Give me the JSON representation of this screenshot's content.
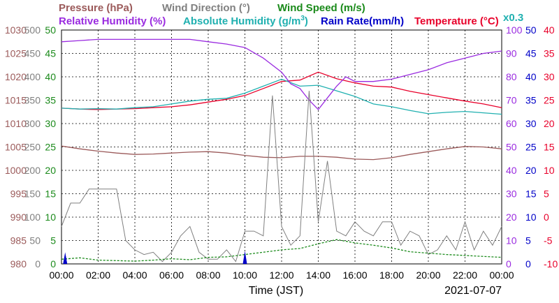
{
  "chart_data": {
    "type": "line",
    "legend": [
      {
        "text": "Pressure (hPa)",
        "color": "#9b5a5a"
      },
      {
        "text": "Wind Direction (°)",
        "color": "#808080"
      },
      {
        "text": "Wind Speed (m/s)",
        "color": "#1a8a1a"
      },
      {
        "text": "Relative Humidity (%)",
        "color": "#9a2be0"
      },
      {
        "text": "Absolute Humidity (g/m",
        "sup": "3",
        "tail": ")",
        "color": "#20b0b0"
      },
      {
        "text": "Rain Rate(mm/h)",
        "color": "#0000c8"
      },
      {
        "text": "Temperature (°C)",
        "color": "#e8002a"
      },
      {
        "text": "x0.3",
        "color": "#20b0b0"
      }
    ],
    "xlabel": "Time (JST)",
    "date": "2021-07-07",
    "x_ticks": [
      "00:00",
      "02:00",
      "04:00",
      "06:00",
      "08:00",
      "10:00",
      "12:00",
      "14:00",
      "16:00",
      "18:00",
      "20:00",
      "22:00",
      "00:00"
    ],
    "axes": {
      "pressure": {
        "color": "#9b5a5a",
        "ticks": [
          "980",
          "985",
          "990",
          "995",
          "1000",
          "1005",
          "1010",
          "1015",
          "1020",
          "1025",
          "1030"
        ],
        "range": [
          980,
          1030
        ]
      },
      "wind_direction": {
        "color": "#808080",
        "ticks": [
          "0",
          "50",
          "100",
          "150",
          "200",
          "250",
          "300",
          "350",
          "400",
          "450",
          "500"
        ],
        "range": [
          0,
          500
        ]
      },
      "wind_speed": {
        "color": "#1a8a1a",
        "ticks": [
          "0",
          "5",
          "10",
          "15",
          "20",
          "25",
          "30",
          "35",
          "40",
          "45",
          "50"
        ],
        "range": [
          0,
          50
        ]
      },
      "relative_humidity": {
        "color": "#9a2be0",
        "ticks": [
          "0",
          "10",
          "20",
          "30",
          "40",
          "50",
          "60",
          "70",
          "80",
          "90",
          "100"
        ],
        "range": [
          0,
          100
        ]
      },
      "rain_rate": {
        "color": "#0000c8",
        "ticks": [
          "0",
          "5",
          "10",
          "15",
          "20",
          "25",
          "30",
          "35",
          "40",
          "45",
          "50"
        ],
        "range": [
          0,
          50
        ]
      },
      "temperature": {
        "color": "#e8002a",
        "ticks": [
          "-10",
          "-5",
          "0",
          "5",
          "10",
          "15",
          "20",
          "25",
          "30",
          "35",
          "40"
        ],
        "range": [
          -10,
          40
        ]
      }
    },
    "series": [
      {
        "name": "Pressure (hPa)",
        "axis": "pressure",
        "color": "#9b5a5a",
        "x": [
          0,
          1,
          2,
          3,
          4,
          5,
          6,
          7,
          8,
          9,
          10,
          11,
          12,
          13,
          14,
          15,
          16,
          17,
          18,
          19,
          20,
          21,
          22,
          23,
          24
        ],
        "y": [
          1005.2,
          1004.6,
          1004.1,
          1003.7,
          1003.4,
          1003.5,
          1003.7,
          1003.9,
          1004.0,
          1003.7,
          1003.2,
          1002.8,
          1002.7,
          1003.0,
          1003.0,
          1002.8,
          1002.4,
          1002.3,
          1002.7,
          1003.4,
          1004.0,
          1004.6,
          1005.1,
          1005.0,
          1004.6
        ]
      },
      {
        "name": "Temperature (°C)",
        "axis": "temperature",
        "color": "#e8002a",
        "x": [
          0,
          1,
          2,
          3,
          4,
          5,
          6,
          7,
          8,
          9,
          10,
          11,
          12,
          13,
          14,
          15,
          16,
          17,
          18,
          19,
          20,
          21,
          22,
          23,
          24
        ],
        "y": [
          23.3,
          23.1,
          23.0,
          23.1,
          23.2,
          23.4,
          23.6,
          24.0,
          24.6,
          25.2,
          26.0,
          27.5,
          29.0,
          29.3,
          31.0,
          29.6,
          28.7,
          28.0,
          27.8,
          26.9,
          26.2,
          25.5,
          24.8,
          24.2,
          23.4
        ]
      },
      {
        "name": "Absolute Humidity (g/m3)",
        "axis": "temperature",
        "color": "#20b0b0",
        "x": [
          0,
          1,
          2,
          3,
          4,
          5,
          6,
          7,
          8,
          9,
          10,
          11,
          12,
          13,
          14,
          15,
          16,
          17,
          18,
          19,
          20,
          21,
          22,
          23,
          24
        ],
        "y": [
          23.3,
          23.1,
          23.2,
          23.1,
          23.4,
          23.6,
          24.2,
          24.8,
          25.2,
          25.4,
          26.5,
          28.0,
          29.5,
          28.0,
          28.2,
          27.0,
          25.8,
          24.2,
          23.6,
          22.8,
          22.1,
          22.4,
          22.6,
          22.3,
          22.0
        ]
      },
      {
        "name": "Relative Humidity (%)",
        "axis": "relative_humidity",
        "color": "#9a2be0",
        "x": [
          0,
          1,
          2,
          3,
          4,
          5,
          6,
          7,
          8,
          9,
          10,
          11,
          12,
          12.5,
          13,
          13.5,
          14,
          14.5,
          15,
          15.5,
          16,
          17,
          18,
          19,
          20,
          21,
          22,
          23,
          24
        ],
        "y": [
          95,
          95.5,
          96,
          96,
          96,
          96,
          96,
          96,
          95,
          94,
          92.5,
          88,
          82,
          77,
          75,
          70,
          66,
          71,
          76,
          80,
          78,
          78,
          79,
          81,
          83,
          86,
          88,
          90,
          91
        ]
      },
      {
        "name": "Wind Direction (°)",
        "axis": "wind_direction",
        "color": "#808080",
        "x": [
          0,
          0.5,
          1,
          1.5,
          2,
          2.5,
          3,
          3.5,
          4,
          4.5,
          5,
          5.5,
          6,
          6.5,
          7,
          7.5,
          8,
          8.5,
          9,
          9.5,
          10,
          10.5,
          11,
          11.5,
          12,
          12.5,
          13,
          13.5,
          14,
          14.5,
          15,
          15.5,
          16,
          16.5,
          17,
          17.5,
          18,
          18.5,
          19,
          19.5,
          20,
          20.5,
          21,
          21.5,
          22,
          22.5,
          23,
          23.5,
          24
        ],
        "y": [
          80,
          130,
          130,
          160,
          160,
          160,
          160,
          50,
          30,
          20,
          25,
          5,
          25,
          60,
          80,
          25,
          10,
          10,
          30,
          5,
          70,
          70,
          60,
          360,
          80,
          40,
          60,
          370,
          90,
          220,
          70,
          60,
          90,
          70,
          60,
          90,
          90,
          40,
          70,
          60,
          20,
          30,
          60,
          30,
          90,
          30,
          70,
          40,
          80
        ]
      },
      {
        "name": "Wind Speed (m/s)",
        "axis": "wind_speed",
        "color": "#1a8a1a",
        "x": [
          0,
          1,
          2,
          3,
          4,
          5,
          6,
          7,
          8,
          9,
          10,
          11,
          12,
          13,
          14,
          15,
          16,
          17,
          18,
          19,
          20,
          21,
          22,
          23,
          24
        ],
        "y": [
          1.0,
          1.3,
          0.8,
          0.7,
          0.6,
          0.8,
          1.1,
          0.9,
          1.4,
          1.5,
          2.0,
          2.5,
          3.0,
          3.3,
          4.3,
          5.2,
          4.5,
          4.0,
          3.4,
          2.6,
          2.3,
          2.0,
          1.8,
          1.6,
          1.4
        ]
      },
      {
        "name": "Rain Rate(mm/h)",
        "axis": "rain_rate",
        "color": "#0000c8",
        "x": [
          0,
          0.2,
          0.4,
          0.6,
          9.8,
          10.0,
          10.2,
          24
        ],
        "y": [
          0,
          2.5,
          0,
          0,
          0,
          2.8,
          0,
          0
        ]
      }
    ]
  }
}
